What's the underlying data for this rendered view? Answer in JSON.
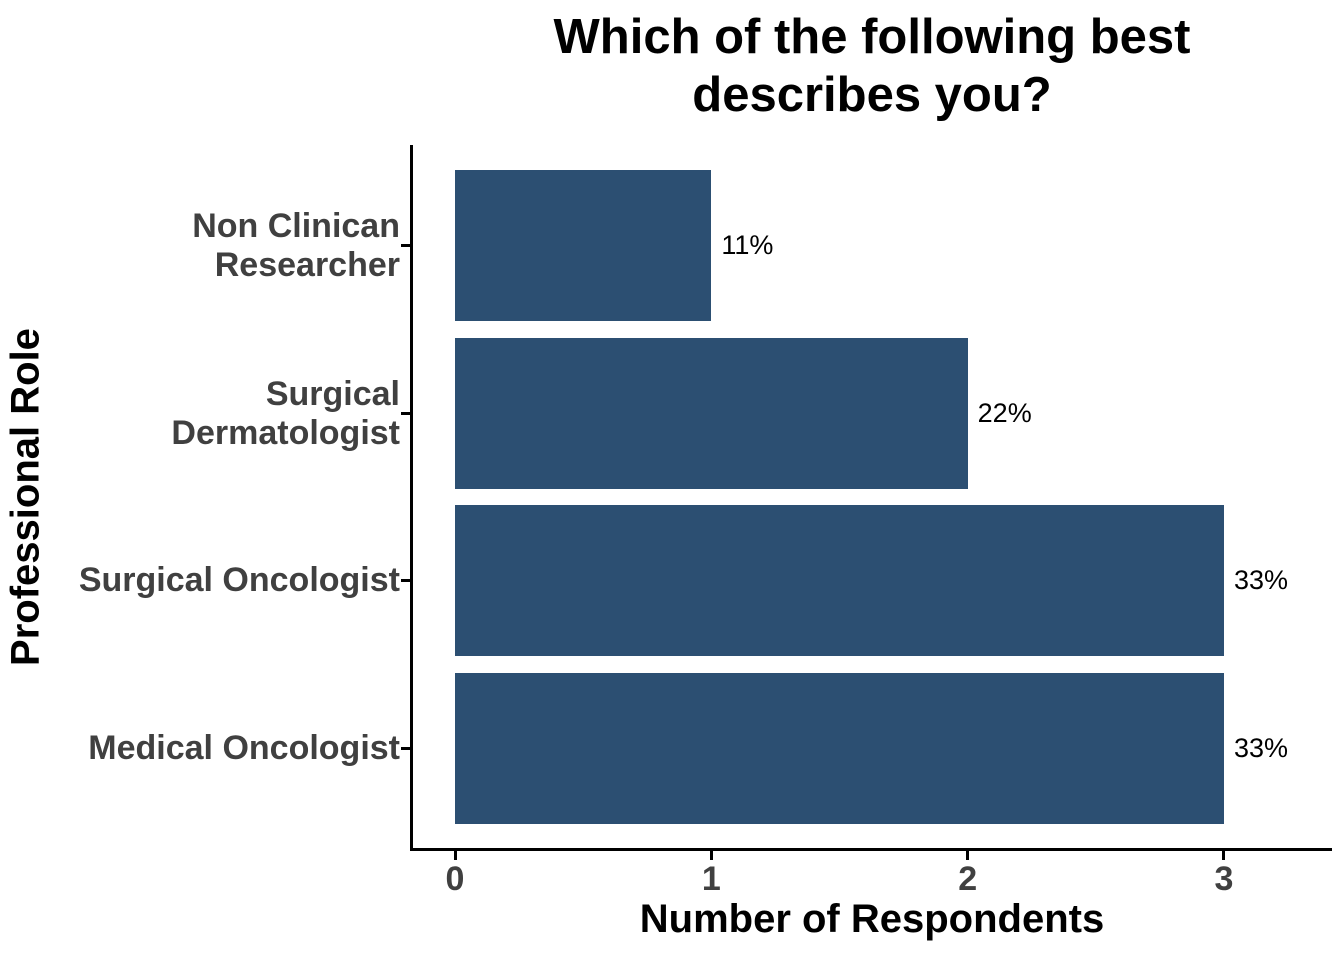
{
  "title": "Which of the following best describes you?",
  "title_lines": [
    "Which of the following best",
    "describes you?"
  ],
  "chart_data": {
    "type": "bar",
    "orientation": "horizontal",
    "title": "Which of the following best describes you?",
    "xlabel": "Number of Respondents",
    "ylabel": "Professional Role",
    "categories": [
      "Non Clinican Researcher",
      "Surgical Dermatologist",
      "Surgical Oncologist",
      "Medical Oncologist"
    ],
    "category_display_lines": [
      [
        "Non Clinican",
        "Researcher"
      ],
      [
        "Surgical",
        "Dermatologist"
      ],
      [
        "Surgical Oncologist"
      ],
      [
        "Medical Oncologist"
      ]
    ],
    "values": [
      1,
      2,
      3,
      3
    ],
    "bar_labels": [
      "11%",
      "22%",
      "33%",
      "33%"
    ],
    "x_ticks": [
      "0",
      "1",
      "2",
      "3"
    ],
    "xlim": [
      0,
      3.35
    ],
    "grid": false,
    "legend": false
  },
  "colors": {
    "bar": "#2C4F72",
    "axis_text": "#404040",
    "title_text": "#000000",
    "axis_line": "#000000",
    "background": "#FFFFFF"
  }
}
